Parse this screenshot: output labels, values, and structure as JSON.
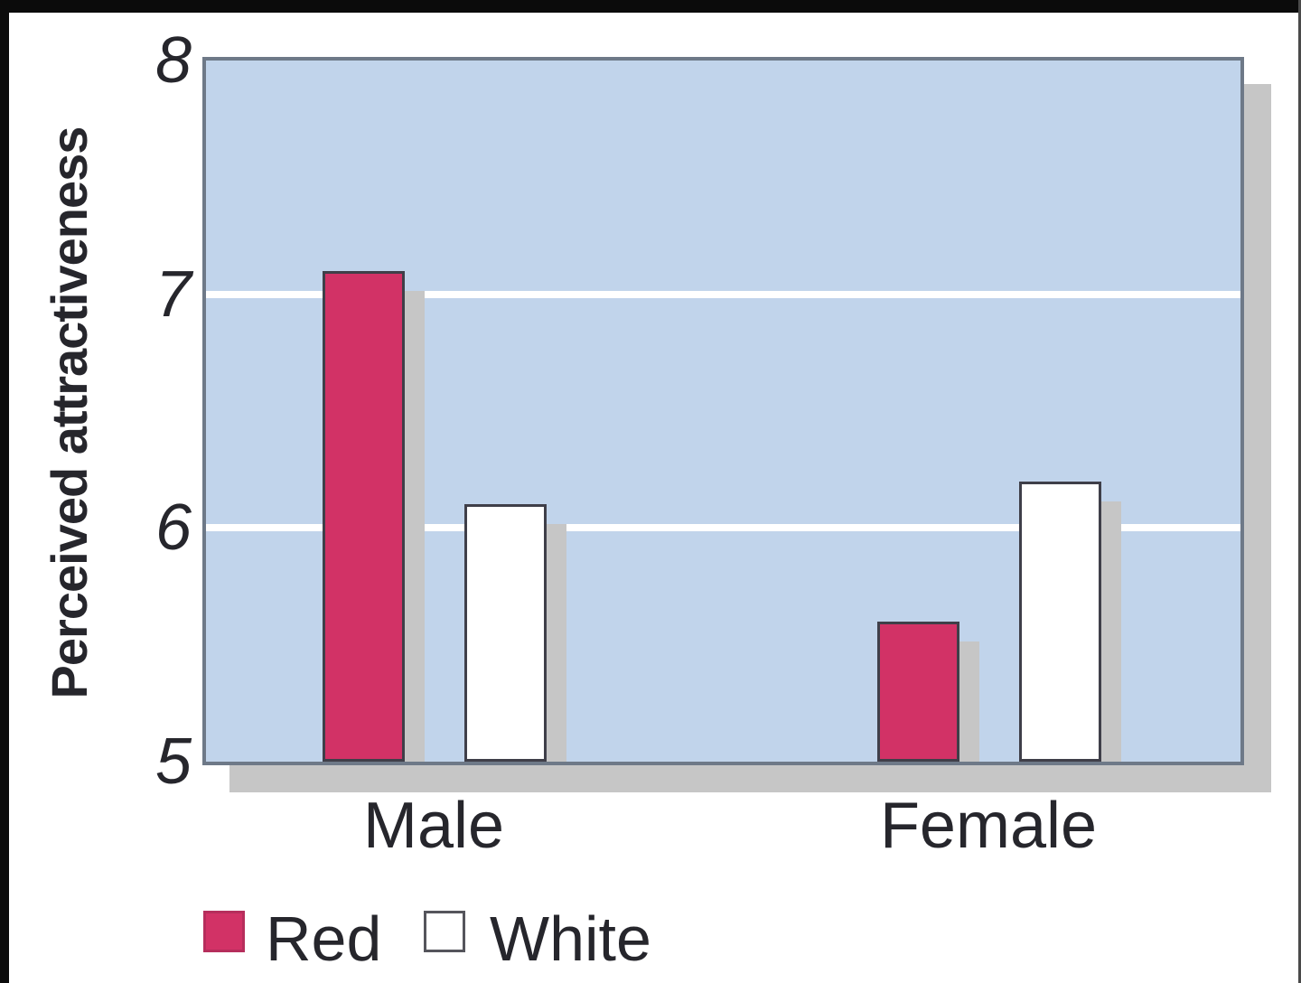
{
  "chart_data": {
    "type": "bar",
    "title": "",
    "xlabel": "",
    "ylabel": "Perceived attractiveness",
    "categories": [
      "Male",
      "Female"
    ],
    "series": [
      {
        "name": "Red",
        "color": "#d23266",
        "values": [
          7.1,
          5.6
        ]
      },
      {
        "name": "White",
        "color": "#ffffff",
        "values": [
          6.1,
          6.2
        ]
      }
    ],
    "ylim": [
      5,
      8
    ],
    "yticks": [
      8,
      7,
      6,
      5
    ],
    "gridlines": [
      7,
      6
    ],
    "grid_on": true,
    "plot_bg_color": "#c1d4eb",
    "gridline_color": "#ffffff",
    "shadow_color": "#c6c6c6",
    "bar_border_color": "#3f3f49",
    "legend_position": "bottom-left"
  }
}
